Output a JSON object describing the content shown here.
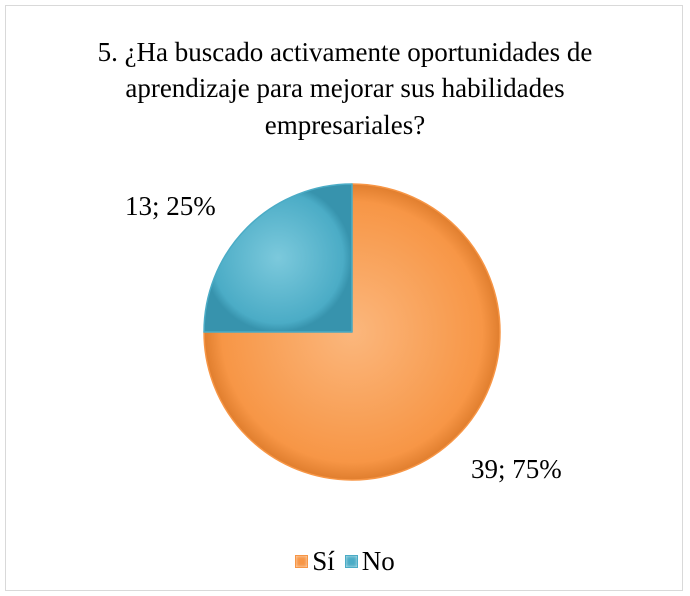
{
  "chart_data": {
    "type": "pie",
    "title": "5. ¿Ha buscado activamente oportunidades de\naprendizaje para mejorar sus habilidades\nempresariales?",
    "slices": [
      {
        "name": "Sí",
        "value": 39,
        "percent": 75,
        "label": "39; 75%",
        "color": "#F79646"
      },
      {
        "name": "No",
        "value": 13,
        "percent": 25,
        "label": "13; 25%",
        "color": "#4BACC6"
      }
    ],
    "start_angle": "12 o'clock",
    "direction": "clockwise",
    "style": "3D bevel",
    "legend": {
      "position": "bottom",
      "entries": [
        "Sí",
        "No"
      ]
    }
  }
}
